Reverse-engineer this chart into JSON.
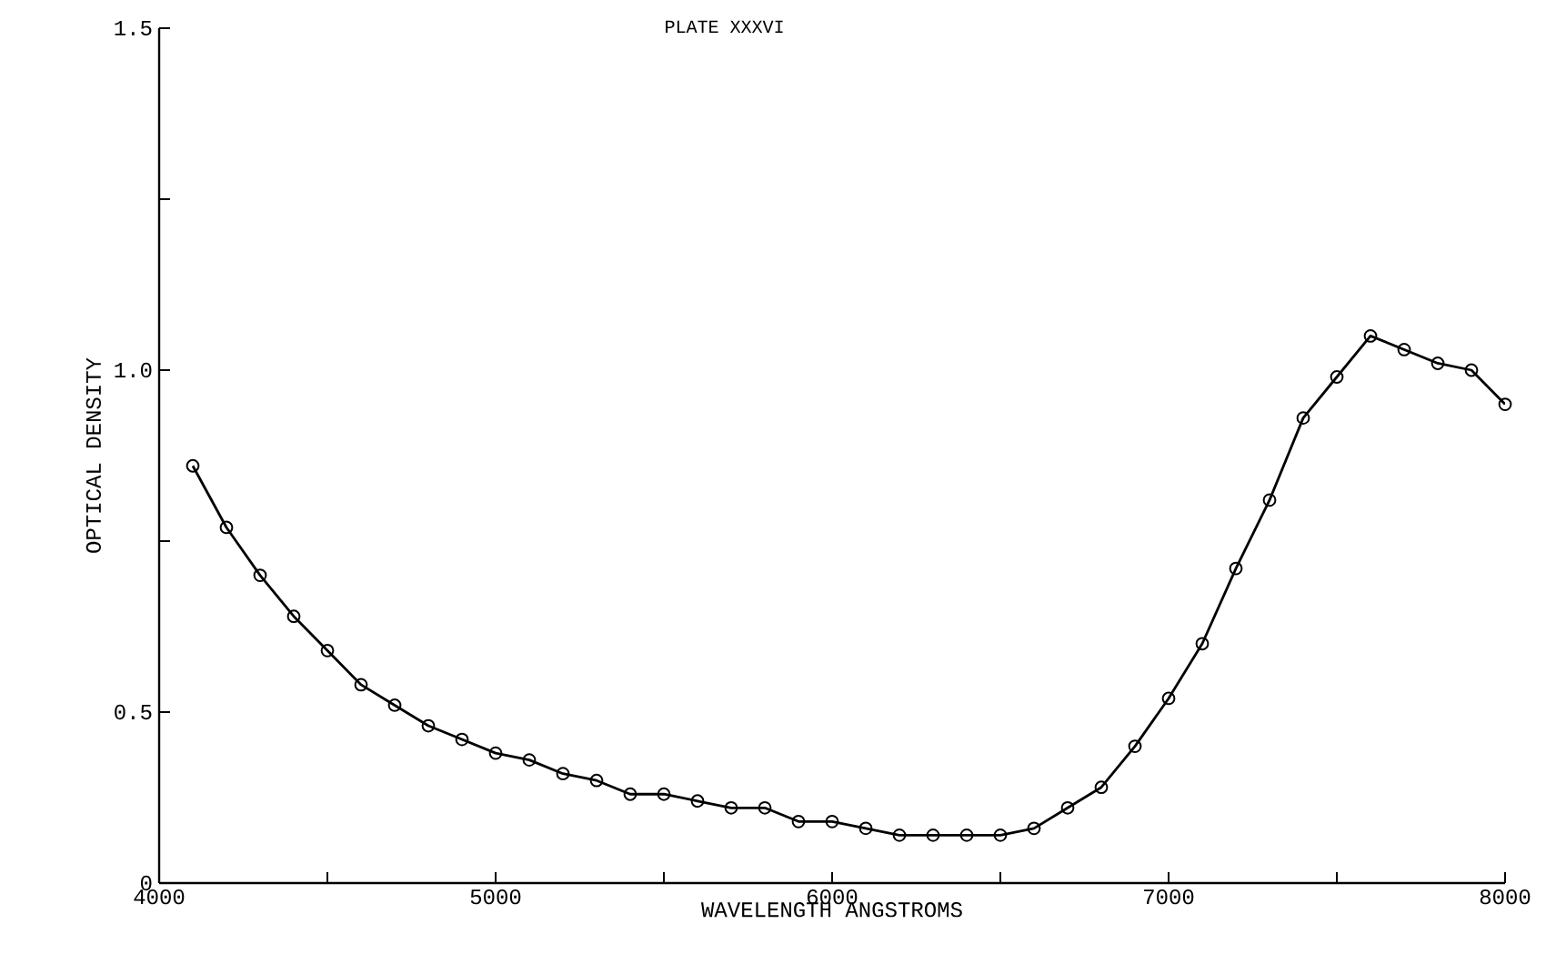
{
  "chart_data": {
    "type": "line",
    "title": "PLATE XXXVI",
    "xlabel": "WAVELENGTH ANGSTROMS",
    "ylabel": "OPTICAL DENSITY",
    "marker": "circle",
    "line_style": "solid",
    "x": [
      4100,
      4200,
      4300,
      4400,
      4500,
      4600,
      4700,
      4800,
      4900,
      5000,
      5100,
      5200,
      5300,
      5400,
      5500,
      5600,
      5700,
      5800,
      5900,
      6000,
      6100,
      6200,
      6300,
      6400,
      6500,
      6600,
      6700,
      6800,
      6900,
      7000,
      7100,
      7200,
      7300,
      7400,
      7500,
      7600,
      7700,
      7800,
      7900,
      8000
    ],
    "series": [
      {
        "color": "#000000",
        "values": [
          0.86,
          0.77,
          0.7,
          0.64,
          0.59,
          0.54,
          0.51,
          0.48,
          0.46,
          0.44,
          0.43,
          0.41,
          0.4,
          0.38,
          0.38,
          0.37,
          0.36,
          0.36,
          0.34,
          0.34,
          0.33,
          0.32,
          0.32,
          0.32,
          0.32,
          0.33,
          0.36,
          0.39,
          0.45,
          0.52,
          0.6,
          0.71,
          0.81,
          0.93,
          0.99,
          1.05,
          1.03,
          1.01,
          1.0,
          0.95
        ]
      }
    ],
    "xlim": [
      4000,
      8000
    ],
    "ylim": [
      0.25,
      1.5
    ],
    "xticks": [
      4000,
      {
        "value": 4500,
        "label": null
      },
      5000,
      {
        "value": 5500,
        "label": null
      },
      6000,
      {
        "value": 6500,
        "label": null
      },
      7000,
      {
        "value": 7500,
        "label": null
      },
      8000
    ],
    "yticks": [
      {
        "value": 0.25,
        "label": "0"
      },
      0.5,
      {
        "value": 0.75,
        "label": null
      },
      {
        "value": 1.0,
        "label": "1.0"
      },
      {
        "value": 1.25,
        "label": null
      },
      1.5
    ]
  }
}
